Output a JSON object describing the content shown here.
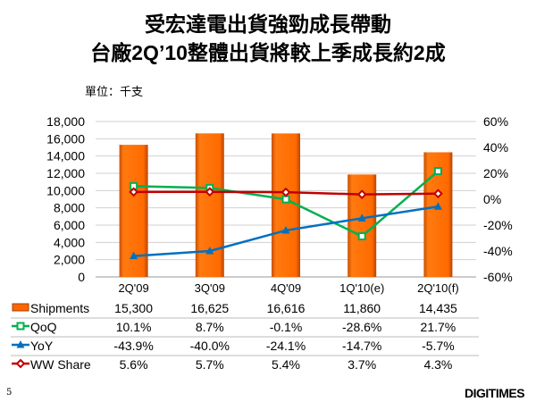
{
  "title_line1": "受宏達電出貨強勁成長帶動",
  "title_line2": "台廠2Q’10整體出貨將較上季成長約2成",
  "unit": "單位：千支",
  "page_number": "5",
  "logo": "DIGITIMES",
  "chart_data": {
    "type": "bar",
    "categories": [
      "2Q'09",
      "3Q'09",
      "4Q'09",
      "1Q'10(e)",
      "2Q'10(f)"
    ],
    "left_axis": {
      "ylim": [
        0,
        18000
      ],
      "ticks": [
        "0",
        "2,000",
        "4,000",
        "6,000",
        "8,000",
        "10,000",
        "12,000",
        "14,000",
        "16,000",
        "18,000"
      ]
    },
    "right_axis": {
      "ylim": [
        -60,
        60
      ],
      "ticks": [
        "-60%",
        "-40%",
        "-20%",
        "0%",
        "20%",
        "40%",
        "60%"
      ]
    },
    "grid": true,
    "series": [
      {
        "name": "Shipments",
        "type": "bar",
        "axis": "left",
        "color": "#FF6600",
        "values": [
          15300,
          16625,
          16616,
          11860,
          14435
        ],
        "labels": [
          "15,300",
          "16,625",
          "16,616",
          "11,860",
          "14,435"
        ]
      },
      {
        "name": "QoQ",
        "type": "line",
        "axis": "right",
        "color": "#00B050",
        "marker": "square",
        "values": [
          10.1,
          8.7,
          -0.1,
          -28.6,
          21.7
        ],
        "labels": [
          "10.1%",
          "8.7%",
          "-0.1%",
          "-28.6%",
          "21.7%"
        ]
      },
      {
        "name": "YoY",
        "type": "line",
        "axis": "right",
        "color": "#0070C0",
        "marker": "triangle",
        "values": [
          -43.9,
          -40.0,
          -24.1,
          -14.7,
          -5.7
        ],
        "labels": [
          "-43.9%",
          "-40.0%",
          "-24.1%",
          "-14.7%",
          "-5.7%"
        ]
      },
      {
        "name": "WW Share",
        "type": "line",
        "axis": "right",
        "color": "#C00000",
        "marker": "diamond",
        "values": [
          5.6,
          5.7,
          5.4,
          3.7,
          4.3
        ],
        "labels": [
          "5.6%",
          "5.7%",
          "5.4%",
          "3.7%",
          "4.3%"
        ]
      }
    ]
  }
}
